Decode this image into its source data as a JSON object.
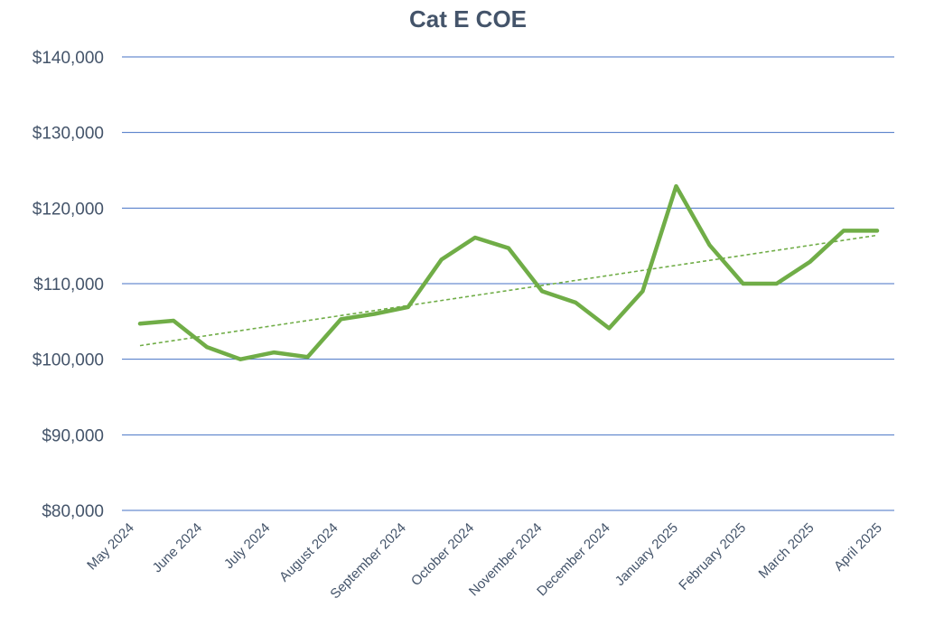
{
  "chart_data": {
    "type": "line",
    "title": "Cat E COE",
    "xlabel": "",
    "ylabel": "",
    "ylim": [
      80000,
      140000
    ],
    "y_ticks": [
      140000,
      130000,
      120000,
      110000,
      100000,
      90000,
      80000
    ],
    "y_tick_labels": [
      "$140,000",
      "$130,000",
      "$120,000",
      "$110,000",
      "$100,000",
      "$90,000",
      "$80,000"
    ],
    "x_tick_labels": [
      "May 2024",
      "June 2024",
      "July 2024",
      "August 2024",
      "September 2024",
      "October 2024",
      "November 2024",
      "December 2024",
      "January 2025",
      "February 2025",
      "March 2025",
      "April 2025"
    ],
    "gridlines": "horizontal",
    "trendline": {
      "type": "linear",
      "style": "dashed",
      "start": 101800,
      "end": 116400
    },
    "series": [
      {
        "color": "#70ad47",
        "values": [
          104700,
          105100,
          101600,
          100000,
          100900,
          100300,
          105300,
          106000,
          106900,
          113200,
          116100,
          114700,
          109000,
          107500,
          104100,
          109000,
          122900,
          115100,
          110000,
          110000,
          112900,
          117000,
          117000
        ]
      }
    ]
  },
  "colors": {
    "line": "#70ad47",
    "gridline": "#4472c4",
    "text": "#44546a"
  }
}
